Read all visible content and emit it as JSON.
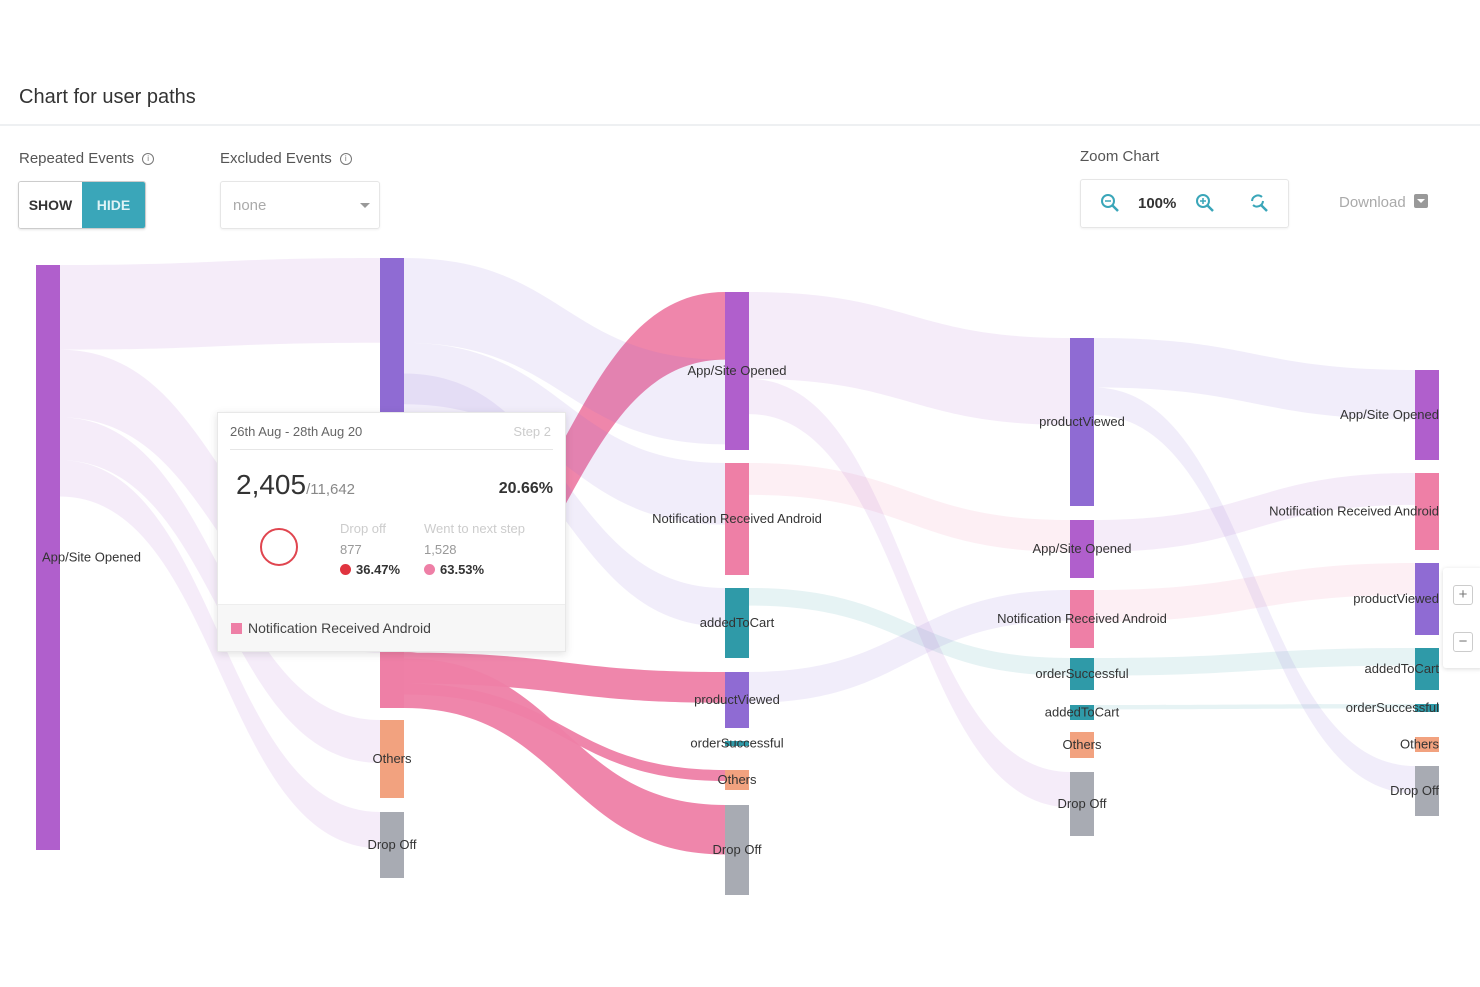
{
  "header": {
    "title": "Chart for user paths"
  },
  "controls": {
    "repeated_events": {
      "label": "Repeated Events",
      "options": [
        "SHOW",
        "HIDE"
      ],
      "selected": "HIDE"
    },
    "excluded_events": {
      "label": "Excluded Events",
      "value": "none"
    },
    "zoom": {
      "label": "Zoom Chart",
      "level": "100%"
    },
    "download_label": "Download",
    "side_zoom": {
      "plus": "+",
      "minus": "−"
    }
  },
  "colors": {
    "App/Site Opened": "#b05fcc",
    "productViewed": "#8f6bd3",
    "Notification Received Android": "#ee7fa6",
    "addedToCart": "#2f9aa8",
    "orderSuccessful": "#2f9aa8",
    "Others": "#f2a27f",
    "Drop Off": "#a8abb3",
    "accent": "#3aa6b9"
  },
  "chart_data": {
    "type": "sankey",
    "title": "Chart for user paths",
    "steps": [
      {
        "nodes": [
          {
            "id": "s1_app",
            "label": "App/Site Opened"
          }
        ]
      },
      {
        "nodes": [
          {
            "id": "s2_pv",
            "label": ""
          },
          {
            "id": "s2_notif",
            "label": "Notification Received Android"
          },
          {
            "id": "s2_others",
            "label": "Others"
          },
          {
            "id": "s2_drop",
            "label": "Drop Off"
          }
        ]
      },
      {
        "nodes": [
          {
            "id": "s3_app",
            "label": "App/Site Opened"
          },
          {
            "id": "s3_notif",
            "label": "Notification Received Android"
          },
          {
            "id": "s3_cart",
            "label": "addedToCart"
          },
          {
            "id": "s3_pv",
            "label": "productViewed"
          },
          {
            "id": "s3_order",
            "label": "orderSuccessful"
          },
          {
            "id": "s3_others",
            "label": "Others"
          },
          {
            "id": "s3_drop",
            "label": "Drop Off"
          }
        ]
      },
      {
        "nodes": [
          {
            "id": "s4_pv",
            "label": "productViewed"
          },
          {
            "id": "s4_app",
            "label": "App/Site Opened"
          },
          {
            "id": "s4_notif",
            "label": "Notification Received Android"
          },
          {
            "id": "s4_order",
            "label": "orderSuccessful"
          },
          {
            "id": "s4_cart",
            "label": "addedToCart"
          },
          {
            "id": "s4_others",
            "label": "Others"
          },
          {
            "id": "s4_drop",
            "label": "Drop Off"
          }
        ]
      },
      {
        "nodes": [
          {
            "id": "s5_app",
            "label": "App/Site Opened"
          },
          {
            "id": "s5_notif",
            "label": "Notification Received Android"
          },
          {
            "id": "s5_pv",
            "label": "productViewed"
          },
          {
            "id": "s5_cart",
            "label": "addedToCart"
          },
          {
            "id": "s5_order",
            "label": "orderSuccessful"
          },
          {
            "id": "s5_others",
            "label": "Others"
          },
          {
            "id": "s5_drop",
            "label": "Drop Off"
          }
        ]
      }
    ],
    "highlighted_node": "s2_notif",
    "links": [
      [
        "s1_app",
        "s2_pv"
      ],
      [
        "s1_app",
        "s2_notif"
      ],
      [
        "s1_app",
        "s2_others"
      ],
      [
        "s1_app",
        "s2_drop"
      ],
      [
        "s2_notif",
        "s3_app"
      ],
      [
        "s2_notif",
        "s3_pv"
      ],
      [
        "s2_notif",
        "s3_others"
      ],
      [
        "s2_notif",
        "s3_drop"
      ],
      [
        "s2_pv",
        "s3_app"
      ],
      [
        "s2_pv",
        "s3_notif"
      ],
      [
        "s2_pv",
        "s3_cart"
      ],
      [
        "s3_app",
        "s4_pv"
      ],
      [
        "s3_notif",
        "s4_app"
      ],
      [
        "s3_cart",
        "s4_order"
      ],
      [
        "s3_pv",
        "s4_notif"
      ],
      [
        "s3_app",
        "s4_drop"
      ],
      [
        "s4_pv",
        "s5_app"
      ],
      [
        "s4_app",
        "s5_notif"
      ],
      [
        "s4_notif",
        "s5_pv"
      ],
      [
        "s4_order",
        "s5_cart"
      ],
      [
        "s4_cart",
        "s5_order"
      ],
      [
        "s4_pv",
        "s5_drop"
      ]
    ]
  },
  "tooltip": {
    "date_range": "26th Aug - 28th Aug 20",
    "step": "Step 2",
    "count": "2,405",
    "total": "/11,642",
    "percent": "20.66%",
    "drop_off": {
      "label": "Drop off",
      "count": "877",
      "percent": "36.47%",
      "color": "#e0343f"
    },
    "next_step": {
      "label": "Went to next step",
      "count": "1,528",
      "percent": "63.53%",
      "color": "#ee7fa6"
    },
    "event": "Notification Received Android"
  }
}
